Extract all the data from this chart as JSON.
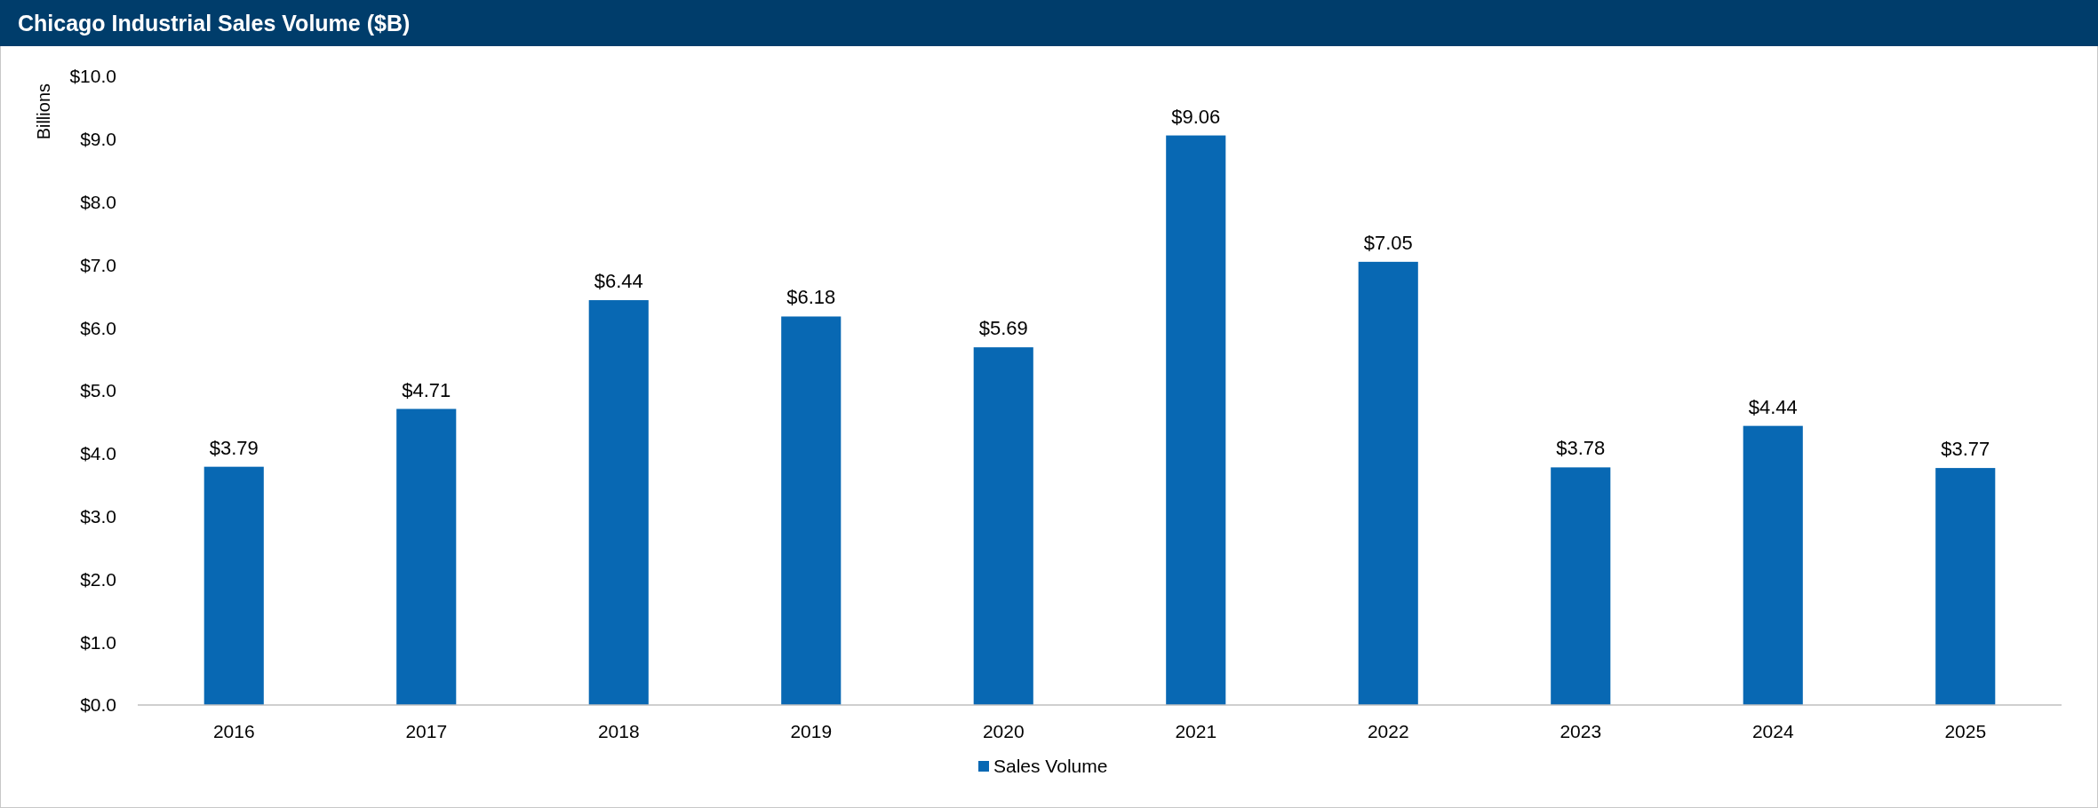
{
  "chart_data": {
    "type": "bar",
    "title": "Chicago Industrial Sales Volume ($B)",
    "ylabel": "Billions",
    "categories": [
      "2016",
      "2017",
      "2018",
      "2019",
      "2020",
      "2021",
      "2022",
      "2023",
      "2024",
      "2025"
    ],
    "series": [
      {
        "name": "Sales Volume",
        "color": "#0868b3",
        "values": [
          3.79,
          4.71,
          6.44,
          6.18,
          5.69,
          9.06,
          7.05,
          3.78,
          4.44,
          3.77
        ],
        "value_labels": [
          "$3.79",
          "$4.71",
          "$6.44",
          "$6.18",
          "$5.69",
          "$9.06",
          "$7.05",
          "$3.78",
          "$4.44",
          "$3.77"
        ]
      }
    ],
    "ylim": [
      0,
      10
    ],
    "yticks": [
      {
        "value": 0,
        "label": "$0.0"
      },
      {
        "value": 1,
        "label": "$1.0"
      },
      {
        "value": 2,
        "label": "$2.0"
      },
      {
        "value": 3,
        "label": "$3.0"
      },
      {
        "value": 4,
        "label": "$4.0"
      },
      {
        "value": 5,
        "label": "$5.0"
      },
      {
        "value": 6,
        "label": "$6.0"
      },
      {
        "value": 7,
        "label": "$7.0"
      },
      {
        "value": 8,
        "label": "$8.0"
      },
      {
        "value": 9,
        "label": "$9.0"
      },
      {
        "value": 10,
        "label": "$10.0"
      }
    ],
    "grid": false,
    "legend": "bottom"
  }
}
